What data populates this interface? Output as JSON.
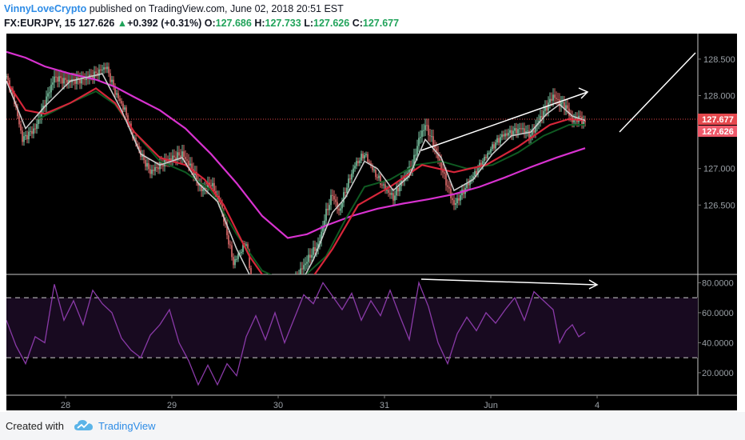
{
  "header": {
    "author": "VinnyLoveCrypto",
    "published": " published on TradingView.com, June 02, 2018 20:51 EST",
    "symbol": "FX:EURJPY, 15",
    "last": "127.626",
    "up_arrow": "▲",
    "change": "+0.392 (+0.31%)",
    "o_label": "O:",
    "o_value": "127.686",
    "h_label": "H:",
    "h_value": "127.733",
    "l_label": "L:",
    "l_value": "127.626",
    "c_label": "C:",
    "c_value": "127.677"
  },
  "footer": {
    "created_with": "Created with",
    "brand": "TradingView",
    "logo_icon": "tradingview-cloud-icon"
  },
  "colors": {
    "background": "#000000",
    "bull": "#7dc9a6",
    "bear": "#e06b6b",
    "ema_fast": "#c9c9c9",
    "ema_mid": "#d6263a",
    "ema_green": "#0f5a22",
    "sma_long": "#d832d0",
    "rsi_line": "#8a3aa8",
    "rsi_band": "#180a20",
    "price_tag_red": "#e5484d",
    "price_tag_pink": "#ef5a6b",
    "axis_text": "#9aa0a6"
  },
  "chart_data": {
    "type": "candlestick",
    "price_axis": {
      "ylim": [
        125.55,
        128.85
      ],
      "ticks": [
        "126.500",
        "127.000",
        "127.500",
        "128.000",
        "128.500"
      ]
    },
    "x_axis": {
      "labels": [
        "28",
        "29",
        "30",
        "31",
        "Jun",
        "4"
      ]
    },
    "price_tags": [
      "127.677",
      "127.626"
    ],
    "price_path": [
      [
        0,
        128.25
      ],
      [
        1.2,
        127.95
      ],
      [
        2.5,
        127.4
      ],
      [
        4.5,
        127.55
      ],
      [
        6,
        127.9
      ],
      [
        7.5,
        128.25
      ],
      [
        9.5,
        128.2
      ],
      [
        12,
        128.22
      ],
      [
        14,
        128.3
      ],
      [
        15.6,
        128.4
      ],
      [
        17,
        128.05
      ],
      [
        18.5,
        127.8
      ],
      [
        19.5,
        127.5
      ],
      [
        21,
        127.2
      ],
      [
        22.5,
        126.95
      ],
      [
        24,
        127.05
      ],
      [
        26,
        127.15
      ],
      [
        27.5,
        127.2
      ],
      [
        29,
        127.0
      ],
      [
        30.5,
        126.7
      ],
      [
        32,
        126.8
      ],
      [
        33.5,
        126.5
      ],
      [
        34.5,
        126.1
      ],
      [
        35.5,
        125.7
      ],
      [
        36.5,
        125.85
      ],
      [
        37.5,
        126.0
      ],
      [
        38.5,
        125.3
      ],
      [
        40,
        125.1
      ],
      [
        42,
        125.0
      ],
      [
        44,
        125.2
      ],
      [
        46,
        125.6
      ],
      [
        47.8,
        125.85
      ],
      [
        48.8,
        125.95
      ],
      [
        50,
        126.4
      ],
      [
        51,
        126.65
      ],
      [
        52,
        126.4
      ],
      [
        53,
        126.7
      ],
      [
        54.5,
        127.05
      ],
      [
        56,
        127.2
      ],
      [
        57.5,
        126.95
      ],
      [
        59,
        126.75
      ],
      [
        60.5,
        126.6
      ],
      [
        62,
        126.85
      ],
      [
        63.5,
        127.05
      ],
      [
        64.5,
        127.4
      ],
      [
        65.5,
        127.6
      ],
      [
        66.5,
        127.4
      ],
      [
        67.5,
        127.15
      ],
      [
        69,
        126.75
      ],
      [
        70,
        126.5
      ],
      [
        71.5,
        126.7
      ],
      [
        73,
        126.9
      ],
      [
        74.5,
        127.1
      ],
      [
        76,
        127.3
      ],
      [
        77.5,
        127.45
      ],
      [
        79,
        127.5
      ],
      [
        80.5,
        127.55
      ],
      [
        82,
        127.45
      ],
      [
        83.5,
        127.7
      ],
      [
        84.5,
        127.85
      ],
      [
        85.5,
        128.0
      ],
      [
        86.5,
        127.9
      ],
      [
        87.5,
        127.85
      ],
      [
        88.5,
        127.65
      ],
      [
        89.5,
        127.7
      ],
      [
        90.5,
        127.62
      ]
    ],
    "ema_fast": [
      [
        0,
        128.2
      ],
      [
        3,
        127.55
      ],
      [
        6,
        127.85
      ],
      [
        10,
        128.2
      ],
      [
        15,
        128.3
      ],
      [
        18,
        127.8
      ],
      [
        21,
        127.2
      ],
      [
        24,
        127.05
      ],
      [
        27.5,
        127.15
      ],
      [
        30,
        126.8
      ],
      [
        33,
        126.55
      ],
      [
        36,
        125.9
      ],
      [
        40,
        125.2
      ],
      [
        44,
        125.1
      ],
      [
        48,
        125.75
      ],
      [
        51,
        126.4
      ],
      [
        53,
        126.6
      ],
      [
        56,
        127.1
      ],
      [
        58,
        127.0
      ],
      [
        60.5,
        126.7
      ],
      [
        63,
        126.9
      ],
      [
        65.5,
        127.4
      ],
      [
        68,
        127.15
      ],
      [
        70,
        126.7
      ],
      [
        73,
        126.85
      ],
      [
        76,
        127.2
      ],
      [
        79,
        127.45
      ],
      [
        82,
        127.5
      ],
      [
        84.5,
        127.75
      ],
      [
        86.5,
        127.88
      ],
      [
        88.5,
        127.72
      ],
      [
        90.5,
        127.66
      ]
    ],
    "ema_mid": [
      [
        0,
        128.2
      ],
      [
        3,
        127.8
      ],
      [
        6,
        127.75
      ],
      [
        10,
        127.9
      ],
      [
        14,
        128.1
      ],
      [
        17,
        127.9
      ],
      [
        20,
        127.5
      ],
      [
        24,
        127.15
      ],
      [
        28,
        127.05
      ],
      [
        31,
        126.85
      ],
      [
        34,
        126.5
      ],
      [
        38,
        125.8
      ],
      [
        42,
        125.3
      ],
      [
        47,
        125.4
      ],
      [
        51,
        125.9
      ],
      [
        55,
        126.5
      ],
      [
        60,
        126.75
      ],
      [
        65,
        127.05
      ],
      [
        70,
        126.95
      ],
      [
        75,
        127.05
      ],
      [
        80,
        127.3
      ],
      [
        85,
        127.6
      ],
      [
        88,
        127.68
      ],
      [
        90.5,
        127.66
      ]
    ],
    "ema_green": [
      [
        5,
        127.68
      ],
      [
        10,
        127.9
      ],
      [
        14,
        128.06
      ],
      [
        17,
        127.88
      ],
      [
        20,
        127.5
      ],
      [
        24,
        127.1
      ],
      [
        28,
        126.95
      ],
      [
        32,
        126.7
      ],
      [
        36,
        126.1
      ],
      [
        40,
        125.6
      ],
      [
        45,
        125.4
      ],
      [
        50,
        125.8
      ],
      [
        53,
        126.3
      ],
      [
        56,
        126.75
      ],
      [
        60,
        126.85
      ],
      [
        64,
        127.05
      ],
      [
        68,
        127.1
      ],
      [
        72,
        127.0
      ],
      [
        76,
        127.05
      ],
      [
        80,
        127.22
      ],
      [
        84,
        127.45
      ],
      [
        88,
        127.6
      ],
      [
        90.5,
        127.6
      ]
    ],
    "sma_long": [
      [
        0,
        128.6
      ],
      [
        3,
        128.52
      ],
      [
        6,
        128.4
      ],
      [
        10,
        128.3
      ],
      [
        14,
        128.22
      ],
      [
        17,
        128.12
      ],
      [
        20,
        127.98
      ],
      [
        24,
        127.8
      ],
      [
        28,
        127.55
      ],
      [
        32,
        127.2
      ],
      [
        36,
        126.8
      ],
      [
        40,
        126.35
      ],
      [
        44,
        126.05
      ],
      [
        47,
        126.1
      ],
      [
        50,
        126.22
      ],
      [
        54,
        126.35
      ],
      [
        58,
        126.45
      ],
      [
        62,
        126.52
      ],
      [
        66,
        126.58
      ],
      [
        70,
        126.65
      ],
      [
        74,
        126.75
      ],
      [
        78,
        126.88
      ],
      [
        82,
        127.02
      ],
      [
        86,
        127.15
      ],
      [
        90.5,
        127.28
      ]
    ],
    "rsi": {
      "ylim": [
        5,
        85
      ],
      "ticks": [
        "20.0000",
        "40.0000",
        "60.0000",
        "80.0000"
      ],
      "levels": [
        70,
        30
      ],
      "values": [
        [
          0,
          55
        ],
        [
          1.5,
          38
        ],
        [
          3,
          26
        ],
        [
          4.5,
          44
        ],
        [
          6,
          40
        ],
        [
          7.5,
          79
        ],
        [
          9,
          55
        ],
        [
          10.5,
          68
        ],
        [
          12,
          52
        ],
        [
          13.5,
          75
        ],
        [
          15,
          66
        ],
        [
          16.5,
          60
        ],
        [
          18,
          43
        ],
        [
          19.5,
          35
        ],
        [
          21,
          30
        ],
        [
          22.5,
          45
        ],
        [
          24,
          52
        ],
        [
          25.5,
          62
        ],
        [
          27,
          40
        ],
        [
          28.5,
          28
        ],
        [
          30,
          12
        ],
        [
          31.5,
          25
        ],
        [
          33,
          12
        ],
        [
          34.5,
          26
        ],
        [
          36,
          18
        ],
        [
          37.5,
          44
        ],
        [
          39,
          58
        ],
        [
          40.5,
          42
        ],
        [
          42,
          60
        ],
        [
          43.5,
          40
        ],
        [
          45,
          56
        ],
        [
          46.5,
          72
        ],
        [
          48,
          66
        ],
        [
          49.5,
          80
        ],
        [
          51,
          71
        ],
        [
          52.5,
          62
        ],
        [
          54,
          73
        ],
        [
          55.5,
          55
        ],
        [
          57,
          68
        ],
        [
          58.5,
          58
        ],
        [
          60,
          75
        ],
        [
          61.5,
          58
        ],
        [
          63,
          42
        ],
        [
          64.5,
          80
        ],
        [
          66,
          64
        ],
        [
          67.5,
          40
        ],
        [
          69,
          26
        ],
        [
          70.5,
          46
        ],
        [
          72,
          57
        ],
        [
          73.5,
          48
        ],
        [
          75,
          60
        ],
        [
          76.5,
          53
        ],
        [
          78,
          62
        ],
        [
          79.5,
          70
        ],
        [
          81,
          55
        ],
        [
          82.5,
          74
        ],
        [
          84,
          68
        ],
        [
          85.5,
          62
        ],
        [
          86.5,
          40
        ],
        [
          87.5,
          48
        ],
        [
          88.5,
          52
        ],
        [
          89.5,
          44
        ],
        [
          90.5,
          47
        ]
      ]
    }
  }
}
